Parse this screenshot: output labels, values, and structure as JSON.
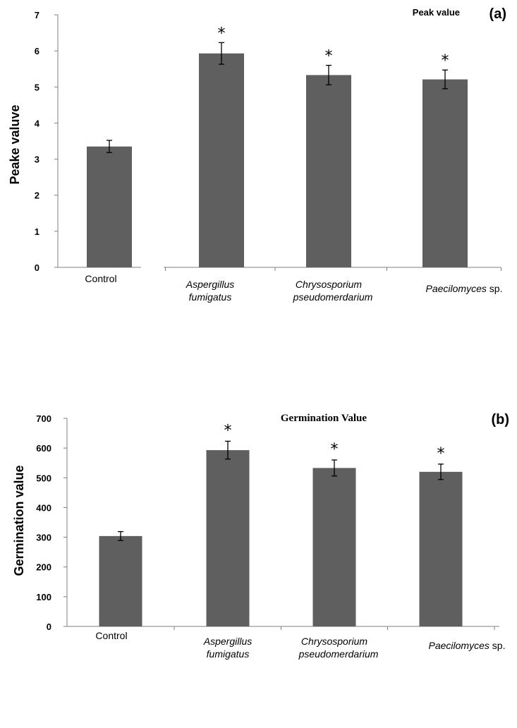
{
  "chart_data": [
    {
      "type": "bar",
      "panel": "(a)",
      "title": "Peak value",
      "ylabel": "Peake valuve",
      "ylim": [
        0,
        7
      ],
      "yticks": [
        0,
        1,
        2,
        3,
        4,
        5,
        6,
        7
      ],
      "categories": [
        {
          "lines": [
            {
              "text": "Control",
              "italic": false
            }
          ]
        },
        {
          "lines": [
            {
              "text": "Aspergillus",
              "italic": true
            },
            {
              "text": "fumigatus",
              "italic": true
            }
          ]
        },
        {
          "lines": [
            {
              "text": "Chrysosporium",
              "italic": true
            },
            {
              "text": "pseudomerdarium",
              "italic": true
            }
          ]
        },
        {
          "lines": [
            {
              "text": "Paecilomyces",
              "italic": true
            },
            {
              "text": " sp.",
              "italic": false
            }
          ]
        }
      ],
      "values": [
        3.35,
        5.93,
        5.33,
        5.21
      ],
      "errors": [
        0.17,
        0.3,
        0.27,
        0.26
      ],
      "significance": [
        "",
        "*",
        "*",
        "*"
      ],
      "bar_color": "#5f5f5f"
    },
    {
      "type": "bar",
      "panel": "(b)",
      "title": "Germination Value",
      "ylabel": "Germination value",
      "ylim": [
        0,
        700
      ],
      "yticks": [
        0,
        100,
        200,
        300,
        400,
        500,
        600,
        700
      ],
      "categories": [
        {
          "lines": [
            {
              "text": "Control",
              "italic": false
            }
          ]
        },
        {
          "lines": [
            {
              "text": "Aspergillus",
              "italic": true
            },
            {
              "text": "fumigatus",
              "italic": true
            }
          ]
        },
        {
          "lines": [
            {
              "text": "Chrysosporium",
              "italic": true
            },
            {
              "text": "pseudomerdarium",
              "italic": true
            }
          ]
        },
        {
          "lines": [
            {
              "text": "Paecilomyces",
              "italic": true
            },
            {
              "text": " sp.",
              "italic": false
            }
          ]
        }
      ],
      "values": [
        304,
        593,
        533,
        520
      ],
      "errors": [
        15,
        30,
        27,
        26
      ],
      "significance": [
        "",
        "*",
        "*",
        "*"
      ],
      "bar_color": "#5f5f5f"
    }
  ]
}
